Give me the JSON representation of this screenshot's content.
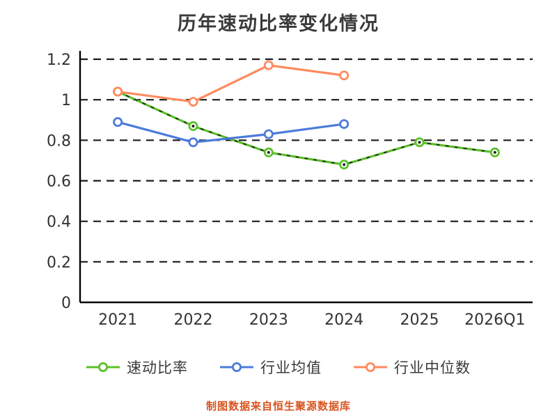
{
  "title": "历年速动比率变化情况",
  "source_note": "制图数据来自恒生聚源数据库",
  "colors": {
    "quick_ratio": "#5bc029",
    "industry_avg": "#4d7bdb",
    "industry_median": "#ff8a5e",
    "axis": "#000000",
    "grid": "#1a1a1a",
    "tick_text": "#333333",
    "source_note_text": "#d9531e"
  },
  "chart_data": {
    "type": "line",
    "categories": [
      "2021",
      "2022",
      "2023",
      "2024",
      "2025",
      "2026Q1"
    ],
    "series": [
      {
        "name": "速动比率",
        "color": "#5bc029",
        "dashed_overlay": true,
        "values": [
          1.04,
          0.87,
          0.74,
          0.68,
          0.79,
          0.74
        ]
      },
      {
        "name": "行业均值",
        "color": "#4d7bdb",
        "dashed_overlay": false,
        "values": [
          0.89,
          0.79,
          0.83,
          0.88,
          null,
          null
        ]
      },
      {
        "name": "行业中位数",
        "color": "#ff8a5e",
        "dashed_overlay": false,
        "values": [
          1.04,
          0.99,
          1.17,
          1.12,
          null,
          null
        ]
      }
    ],
    "ylim": [
      0,
      1.2
    ],
    "yticks": [
      0,
      0.2,
      0.4,
      0.6,
      0.8,
      1,
      1.2
    ],
    "grid": "horizontal-dashed",
    "legend_position": "bottom"
  }
}
